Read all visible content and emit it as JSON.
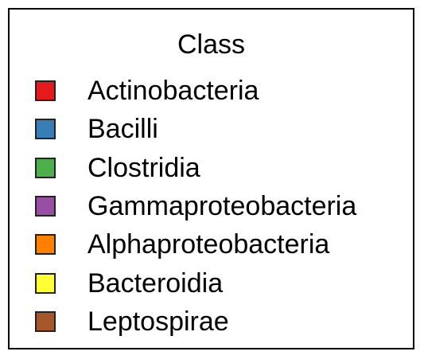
{
  "chart_data": {
    "type": "legend",
    "title": "Class",
    "entries": [
      {
        "label": "Actinobacteria",
        "color": "#e41a1c"
      },
      {
        "label": "Bacilli",
        "color": "#377eb8"
      },
      {
        "label": "Clostridia",
        "color": "#4daf4a"
      },
      {
        "label": "Gammaproteobacteria",
        "color": "#984ea3"
      },
      {
        "label": "Alphaproteobacteria",
        "color": "#ff7f00"
      },
      {
        "label": "Bacteroidia",
        "color": "#ffff33"
      },
      {
        "label": "Leptospirae",
        "color": "#a65628"
      }
    ]
  }
}
